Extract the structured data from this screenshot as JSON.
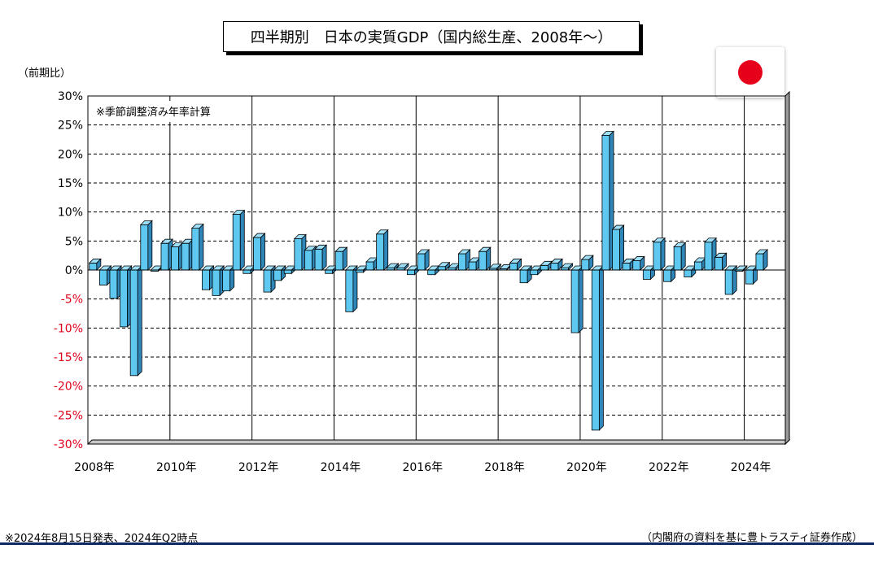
{
  "title": "四半期別　日本の実質GDP（国内総生産、2008年～）",
  "y_unit_label": "（前期比）",
  "chart_note": "※季節調整済み年率計算",
  "footnote_left": "※2024年8月15日発表、2024年Q2時点",
  "footnote_right": "（内閣府の資料を基に豊トラスティ証券作成）",
  "colors": {
    "bar_front": "#5ec8f0",
    "bar_top": "#9fe0f8",
    "bar_side": "#2f86b8",
    "negative_tick": "#e0001a",
    "flag_red": "#e6001a",
    "rule": "#0e2a62"
  },
  "chart_data": {
    "type": "bar",
    "title": "四半期別　日本の実質GDP（国内総生産、2008年～）",
    "ylabel": "（前期比）",
    "ylim": [
      -30,
      30
    ],
    "yticks": [
      "30%",
      "25%",
      "20%",
      "15%",
      "10%",
      "5%",
      "0%",
      "-5%",
      "-10%",
      "-15%",
      "-20%",
      "-25%",
      "-30%"
    ],
    "xticks": [
      "2008年",
      "2010年",
      "2012年",
      "2014年",
      "2016年",
      "2018年",
      "2020年",
      "2022年",
      "2024年"
    ],
    "grid": true,
    "categories": [
      "2008Q1",
      "2008Q2",
      "2008Q3",
      "2008Q4",
      "2009Q1",
      "2009Q2",
      "2009Q3",
      "2009Q4",
      "2010Q1",
      "2010Q2",
      "2010Q3",
      "2010Q4",
      "2011Q1",
      "2011Q2",
      "2011Q3",
      "2011Q4",
      "2012Q1",
      "2012Q2",
      "2012Q3",
      "2012Q4",
      "2013Q1",
      "2013Q2",
      "2013Q3",
      "2013Q4",
      "2014Q1",
      "2014Q2",
      "2014Q3",
      "2014Q4",
      "2015Q1",
      "2015Q2",
      "2015Q3",
      "2015Q4",
      "2016Q1",
      "2016Q2",
      "2016Q3",
      "2016Q4",
      "2017Q1",
      "2017Q2",
      "2017Q3",
      "2017Q4",
      "2018Q1",
      "2018Q2",
      "2018Q3",
      "2018Q4",
      "2019Q1",
      "2019Q2",
      "2019Q3",
      "2019Q4",
      "2020Q1",
      "2020Q2",
      "2020Q3",
      "2020Q4",
      "2021Q1",
      "2021Q2",
      "2021Q3",
      "2021Q4",
      "2022Q1",
      "2022Q2",
      "2022Q3",
      "2022Q4",
      "2023Q1",
      "2023Q2",
      "2023Q3",
      "2023Q4",
      "2024Q1",
      "2024Q2"
    ],
    "values": [
      1.2,
      -2.6,
      -4.9,
      -9.8,
      -18.2,
      7.8,
      -0.2,
      4.6,
      4.0,
      4.6,
      7.2,
      -3.4,
      -4.4,
      -3.6,
      9.6,
      -0.6,
      5.6,
      -3.8,
      -1.8,
      -0.6,
      5.4,
      3.4,
      3.6,
      -0.6,
      3.2,
      -7.2,
      -0.4,
      1.4,
      6.2,
      0.4,
      0.4,
      -0.8,
      2.8,
      -0.8,
      0.6,
      0.4,
      2.8,
      1.4,
      3.2,
      0.3,
      0.2,
      1.2,
      -2.2,
      -0.8,
      0.8,
      1.2,
      0.4,
      -10.8,
      1.8,
      -27.6,
      23.2,
      7.0,
      1.2,
      1.6,
      -1.6,
      4.8,
      -2.0,
      4.0,
      -1.2,
      1.4,
      4.8,
      2.2,
      -4.2,
      -0.2,
      -2.4,
      2.8
    ]
  }
}
